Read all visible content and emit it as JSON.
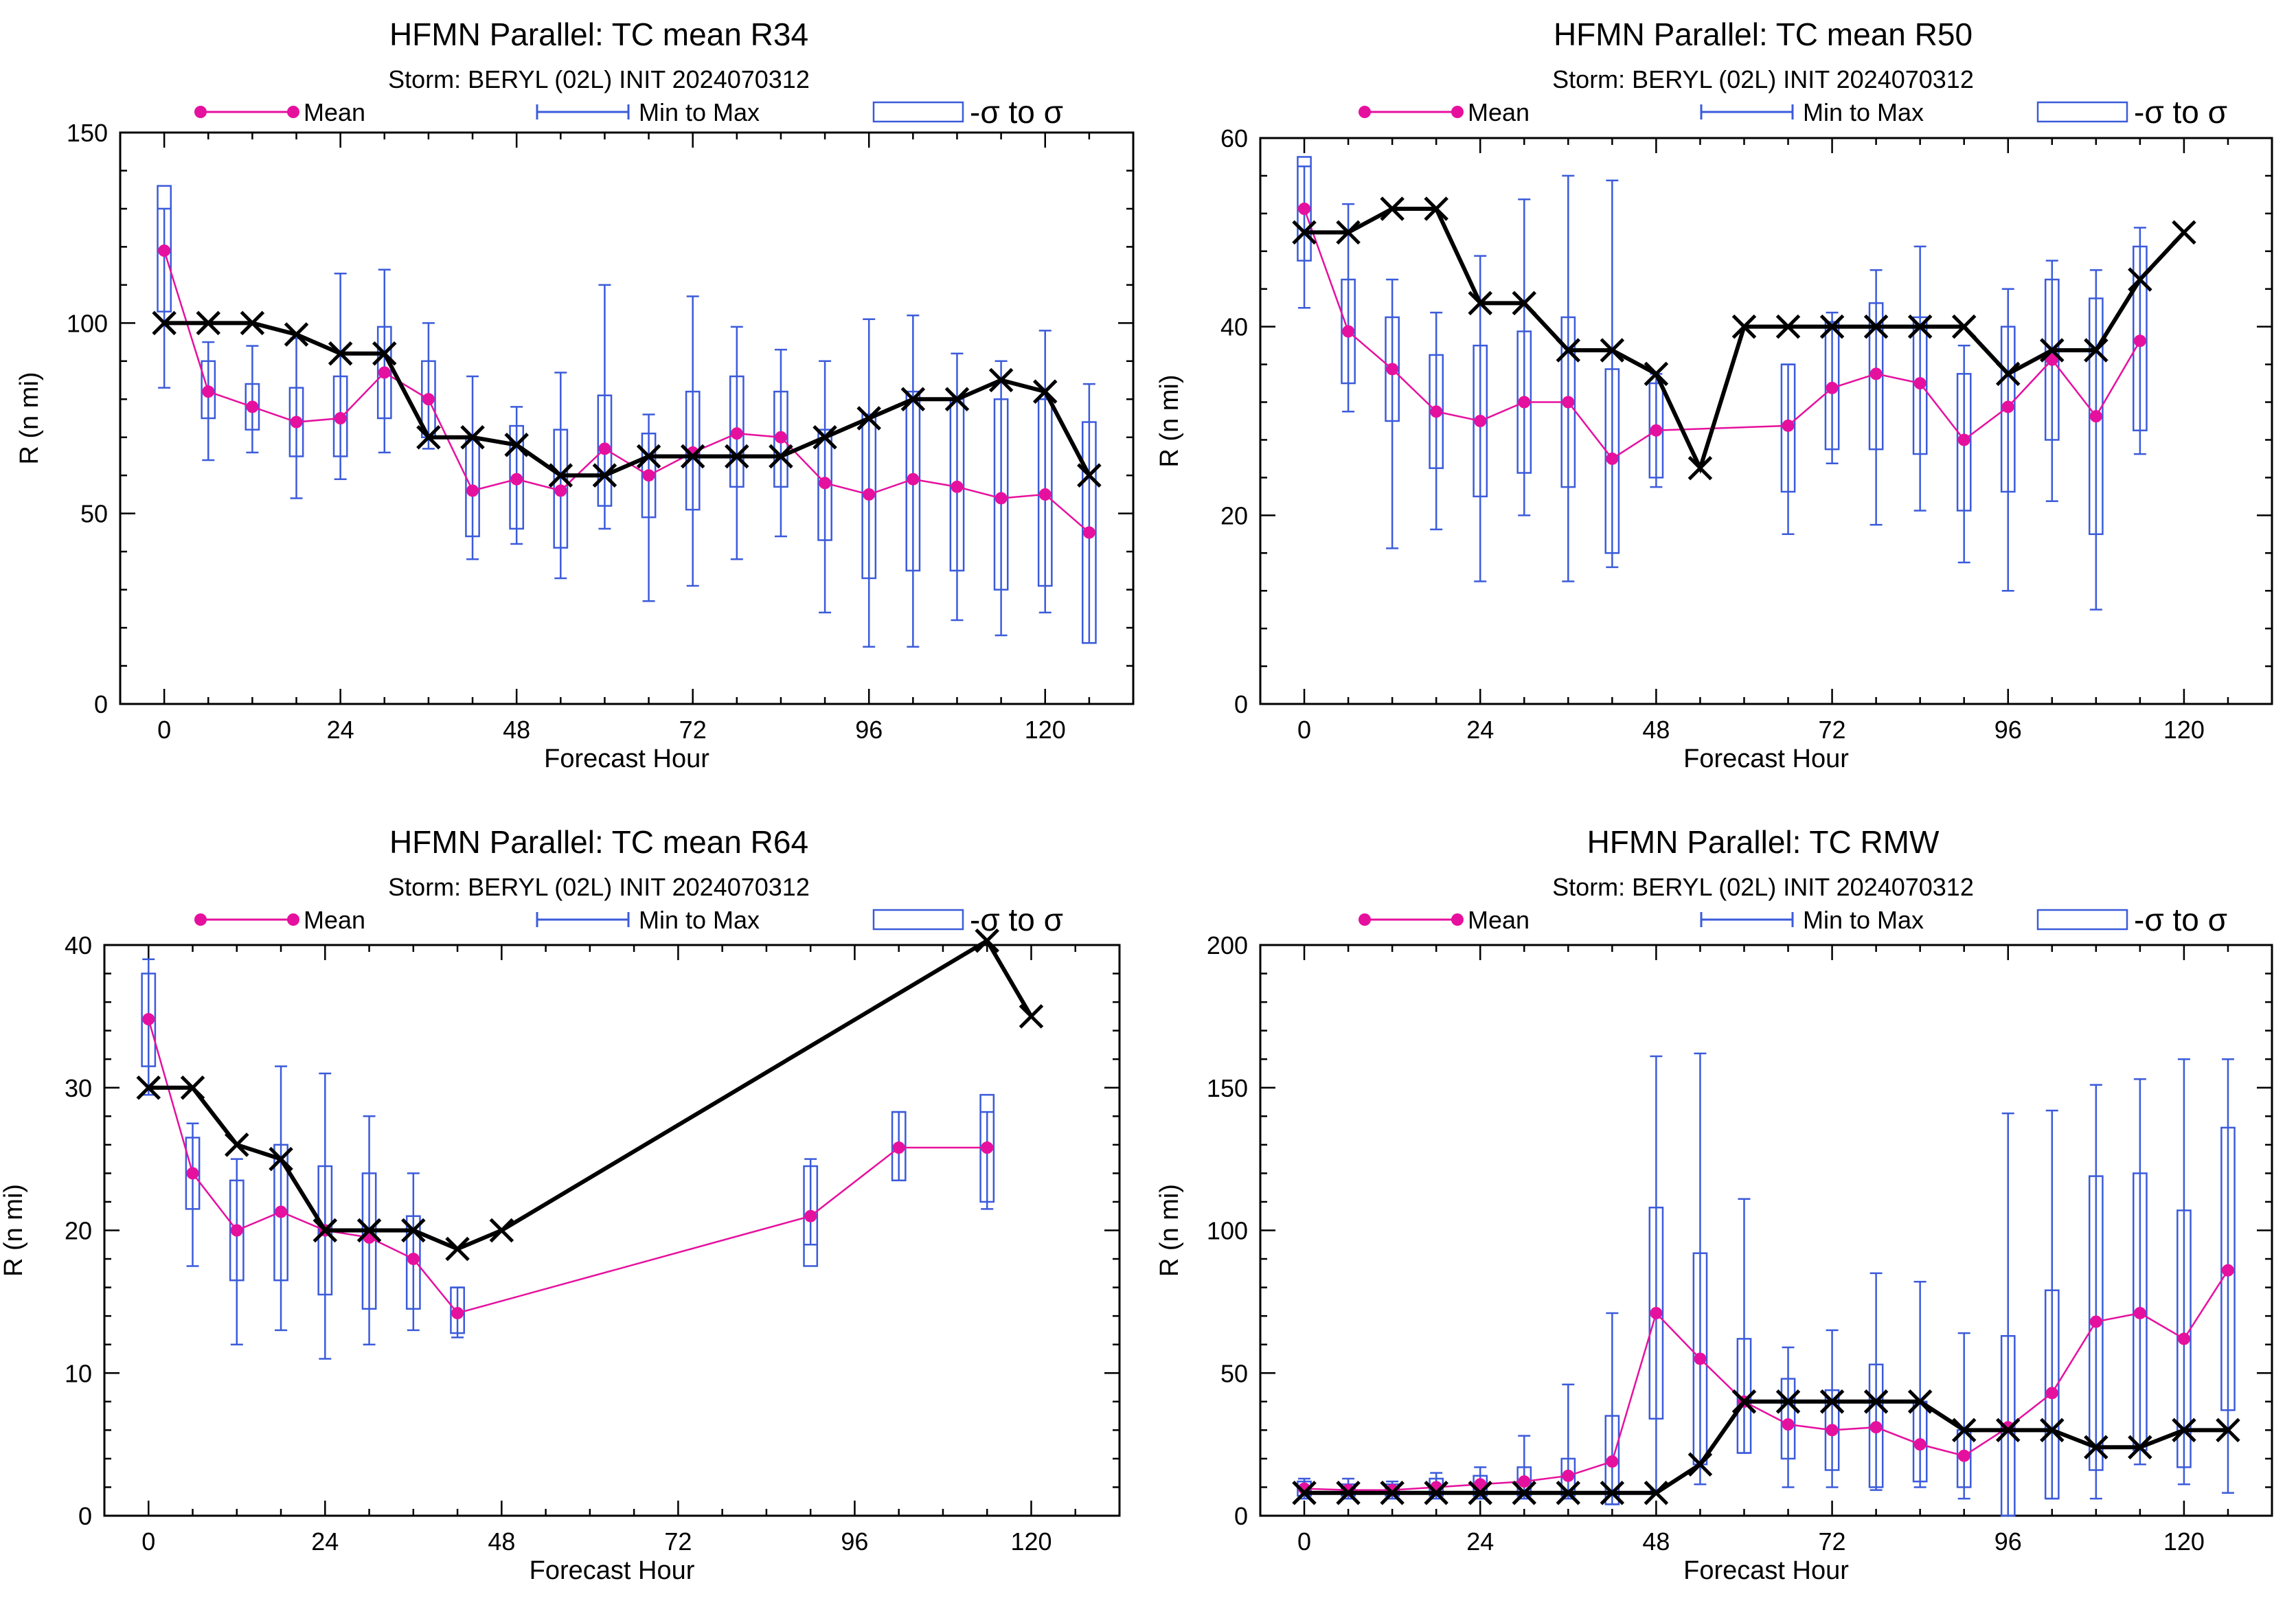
{
  "chart_data": [
    {
      "type": "box-line",
      "title": "HFMN Parallel: TC mean R34",
      "subtitle": "Storm: BERYL (02L) INIT 2024070312",
      "xlabel": "Forecast Hour",
      "ylabel": "R (n mi)",
      "xlim": [
        -6,
        132
      ],
      "ylim": [
        0,
        150
      ],
      "xticks": [
        0,
        24,
        48,
        72,
        96,
        120
      ],
      "yticks": [
        0,
        50,
        100,
        150
      ],
      "legend": {
        "placement": "top",
        "mean": "Mean",
        "range": "Min to Max",
        "sigma": "-σ to σ"
      },
      "colors": {
        "mean": "#e6109e",
        "box": "#3b5bdb",
        "observed": "#000000"
      },
      "boxes": [
        {
          "x": 0,
          "min": 83,
          "max": 130,
          "lo": 103,
          "hi": 136,
          "mean": 119
        },
        {
          "x": 6,
          "min": 64,
          "max": 95,
          "lo": 75,
          "hi": 90,
          "mean": 82
        },
        {
          "x": 12,
          "min": 66,
          "max": 94,
          "lo": 72,
          "hi": 84,
          "mean": 78
        },
        {
          "x": 18,
          "min": 54,
          "max": 96,
          "lo": 65,
          "hi": 83,
          "mean": 74
        },
        {
          "x": 24,
          "min": 59,
          "max": 113,
          "lo": 65,
          "hi": 86,
          "mean": 75
        },
        {
          "x": 30,
          "min": 66,
          "max": 114,
          "lo": 75,
          "hi": 99,
          "mean": 87
        },
        {
          "x": 36,
          "min": 67,
          "max": 100,
          "lo": 70,
          "hi": 90,
          "mean": 80
        },
        {
          "x": 42,
          "min": 38,
          "max": 86,
          "lo": 44,
          "hi": 70,
          "mean": 56
        },
        {
          "x": 48,
          "min": 42,
          "max": 78,
          "lo": 46,
          "hi": 73,
          "mean": 59
        },
        {
          "x": 54,
          "min": 33,
          "max": 87,
          "lo": 41,
          "hi": 72,
          "mean": 56
        },
        {
          "x": 60,
          "min": 46,
          "max": 110,
          "lo": 52,
          "hi": 81,
          "mean": 67
        },
        {
          "x": 66,
          "min": 27,
          "max": 76,
          "lo": 49,
          "hi": 71,
          "mean": 60
        },
        {
          "x": 72,
          "min": 31,
          "max": 107,
          "lo": 51,
          "hi": 82,
          "mean": 66
        },
        {
          "x": 78,
          "min": 38,
          "max": 99,
          "lo": 57,
          "hi": 86,
          "mean": 71
        },
        {
          "x": 84,
          "min": 44,
          "max": 93,
          "lo": 57,
          "hi": 82,
          "mean": 70
        },
        {
          "x": 90,
          "min": 24,
          "max": 90,
          "lo": 43,
          "hi": 72,
          "mean": 58
        },
        {
          "x": 96,
          "min": 15,
          "max": 101,
          "lo": 33,
          "hi": 76,
          "mean": 55
        },
        {
          "x": 102,
          "min": 15,
          "max": 102,
          "lo": 35,
          "hi": 82,
          "mean": 59
        },
        {
          "x": 108,
          "min": 22,
          "max": 92,
          "lo": 35,
          "hi": 80,
          "mean": 57
        },
        {
          "x": 114,
          "min": 18,
          "max": 90,
          "lo": 30,
          "hi": 80,
          "mean": 54
        },
        {
          "x": 120,
          "min": 24,
          "max": 98,
          "lo": 31,
          "hi": 80,
          "mean": 55
        },
        {
          "x": 126,
          "min": 16,
          "max": 84,
          "lo": 16,
          "hi": 74,
          "mean": 45
        }
      ],
      "observed": [
        [
          0,
          100
        ],
        [
          6,
          100
        ],
        [
          12,
          100
        ],
        [
          18,
          97
        ],
        [
          24,
          92
        ],
        [
          30,
          92
        ],
        [
          36,
          70
        ],
        [
          42,
          70
        ],
        [
          48,
          68
        ],
        [
          54,
          60
        ],
        [
          60,
          60
        ],
        [
          66,
          65
        ],
        [
          72,
          65
        ],
        [
          78,
          65
        ],
        [
          84,
          65
        ],
        [
          90,
          70
        ],
        [
          96,
          75
        ],
        [
          102,
          80
        ],
        [
          108,
          80
        ],
        [
          114,
          85
        ],
        [
          120,
          82
        ],
        [
          126,
          60
        ]
      ]
    },
    {
      "type": "box-line",
      "title": "HFMN Parallel: TC mean R50",
      "subtitle": "Storm: BERYL (02L) INIT 2024070312",
      "xlabel": "Forecast Hour",
      "ylabel": "R (n mi)",
      "xlim": [
        -6,
        132
      ],
      "ylim": [
        0,
        60
      ],
      "xticks": [
        0,
        24,
        48,
        72,
        96,
        120
      ],
      "yticks": [
        0,
        20,
        40,
        60
      ],
      "legend": {
        "placement": "top",
        "mean": "Mean",
        "range": "Min to Max",
        "sigma": "-σ to σ"
      },
      "colors": {
        "mean": "#e6109e",
        "box": "#3b5bdb",
        "observed": "#000000"
      },
      "boxes": [
        {
          "x": 0,
          "min": 42,
          "max": 57,
          "lo": 47,
          "hi": 58,
          "mean": 52.5
        },
        {
          "x": 6,
          "min": 31,
          "max": 53,
          "lo": 34,
          "hi": 45,
          "mean": 39.5
        },
        {
          "x": 12,
          "min": 16.5,
          "max": 45,
          "lo": 30,
          "hi": 41,
          "mean": 35.5
        },
        {
          "x": 18,
          "min": 18.5,
          "max": 41.5,
          "lo": 25,
          "hi": 37,
          "mean": 31
        },
        {
          "x": 24,
          "min": 13,
          "max": 47.5,
          "lo": 22,
          "hi": 38,
          "mean": 30
        },
        {
          "x": 30,
          "min": 20,
          "max": 53.5,
          "lo": 24.5,
          "hi": 39.5,
          "mean": 32
        },
        {
          "x": 36,
          "min": 13,
          "max": 56,
          "lo": 23,
          "hi": 41,
          "mean": 32
        },
        {
          "x": 42,
          "min": 14.5,
          "max": 55.5,
          "lo": 16,
          "hi": 35.5,
          "mean": 26
        },
        {
          "x": 48,
          "min": 23,
          "max": 35,
          "lo": 24,
          "hi": 34,
          "mean": 29
        },
        {
          "x": 66,
          "min": 18,
          "max": 36,
          "lo": 22.5,
          "hi": 36,
          "mean": 29.5
        },
        {
          "x": 72,
          "min": 25.5,
          "max": 41.5,
          "lo": 27,
          "hi": 40.5,
          "mean": 33.5
        },
        {
          "x": 78,
          "min": 19,
          "max": 46,
          "lo": 27,
          "hi": 42.5,
          "mean": 35
        },
        {
          "x": 84,
          "min": 20.5,
          "max": 48.5,
          "lo": 26.5,
          "hi": 41,
          "mean": 34
        },
        {
          "x": 90,
          "min": 15,
          "max": 38,
          "lo": 20.5,
          "hi": 35,
          "mean": 28
        },
        {
          "x": 96,
          "min": 12,
          "max": 44,
          "lo": 22.5,
          "hi": 40,
          "mean": 31.5
        },
        {
          "x": 102,
          "min": 21.5,
          "max": 47,
          "lo": 28,
          "hi": 45,
          "mean": 36.5
        },
        {
          "x": 108,
          "min": 10,
          "max": 46,
          "lo": 18,
          "hi": 43,
          "mean": 30.5
        },
        {
          "x": 114,
          "min": 26.5,
          "max": 50.5,
          "lo": 29,
          "hi": 48.5,
          "mean": 38.5
        }
      ],
      "observed": [
        [
          0,
          50
        ],
        [
          6,
          50
        ],
        [
          12,
          52.5
        ],
        [
          18,
          52.5
        ],
        [
          24,
          42.5
        ],
        [
          30,
          42.5
        ],
        [
          36,
          37.5
        ],
        [
          42,
          37.5
        ],
        [
          48,
          35
        ],
        [
          54,
          25
        ],
        [
          60,
          40
        ],
        [
          66,
          40
        ],
        [
          72,
          40
        ],
        [
          78,
          40
        ],
        [
          84,
          40
        ],
        [
          90,
          40
        ],
        [
          96,
          35
        ],
        [
          102,
          37.5
        ],
        [
          108,
          37.5
        ],
        [
          114,
          45
        ],
        [
          120,
          50
        ]
      ]
    },
    {
      "type": "box-line",
      "title": "HFMN Parallel: TC mean R64",
      "subtitle": "Storm: BERYL (02L) INIT 2024070312",
      "xlabel": "Forecast Hour",
      "ylabel": "R (n mi)",
      "xlim": [
        -6,
        132
      ],
      "ylim": [
        0,
        40
      ],
      "xticks": [
        0,
        24,
        48,
        72,
        96,
        120
      ],
      "yticks": [
        0,
        10,
        20,
        30,
        40
      ],
      "legend": {
        "placement": "top",
        "mean": "Mean",
        "range": "Min to Max",
        "sigma": "-σ to σ"
      },
      "colors": {
        "mean": "#e6109e",
        "box": "#3b5bdb",
        "observed": "#000000"
      },
      "boxes": [
        {
          "x": 0,
          "min": 29.5,
          "max": 39,
          "lo": 31.5,
          "hi": 38,
          "mean": 34.8
        },
        {
          "x": 6,
          "min": 17.5,
          "max": 27.5,
          "lo": 21.5,
          "hi": 26.5,
          "mean": 24
        },
        {
          "x": 12,
          "min": 12,
          "max": 25,
          "lo": 16.5,
          "hi": 23.5,
          "mean": 20
        },
        {
          "x": 18,
          "min": 13,
          "max": 31.5,
          "lo": 16.5,
          "hi": 26,
          "mean": 21.3
        },
        {
          "x": 24,
          "min": 11,
          "max": 31,
          "lo": 15.5,
          "hi": 24.5,
          "mean": 20
        },
        {
          "x": 30,
          "min": 12,
          "max": 28,
          "lo": 14.5,
          "hi": 24,
          "mean": 19.5
        },
        {
          "x": 36,
          "min": 13,
          "max": 24,
          "lo": 14.5,
          "hi": 21,
          "mean": 18
        },
        {
          "x": 42,
          "min": 12.5,
          "max": 16,
          "lo": 12.8,
          "hi": 16,
          "mean": 14.2
        },
        {
          "x": 90,
          "min": 19,
          "max": 25,
          "lo": 17.5,
          "hi": 24.5,
          "mean": 21
        },
        {
          "x": 102,
          "min": 23.5,
          "max": 28.3,
          "lo": 23.5,
          "hi": 28.3,
          "mean": 25.8
        },
        {
          "x": 114,
          "min": 21.5,
          "max": 28.3,
          "lo": 22,
          "hi": 29.5,
          "mean": 25.8
        }
      ],
      "observed": [
        [
          0,
          30
        ],
        [
          6,
          30
        ],
        [
          12,
          26
        ],
        [
          18,
          25
        ],
        [
          24,
          20
        ],
        [
          30,
          20
        ],
        [
          36,
          20
        ],
        [
          42,
          18.7
        ],
        [
          48,
          20
        ],
        [
          114,
          40.3
        ],
        [
          120,
          35
        ]
      ]
    },
    {
      "type": "box-line",
      "title": "HFMN Parallel: TC RMW",
      "subtitle": "Storm: BERYL (02L) INIT 2024070312",
      "xlabel": "Forecast Hour",
      "ylabel": "R (n mi)",
      "xlim": [
        -6,
        132
      ],
      "ylim": [
        0,
        200
      ],
      "xticks": [
        0,
        24,
        48,
        72,
        96,
        120
      ],
      "yticks": [
        0,
        50,
        100,
        150,
        200
      ],
      "legend": {
        "placement": "top",
        "mean": "Mean",
        "range": "Min to Max",
        "sigma": "-σ to σ"
      },
      "colors": {
        "mean": "#e6109e",
        "box": "#3b5bdb",
        "observed": "#000000"
      },
      "boxes": [
        {
          "x": 0,
          "min": 6,
          "max": 13,
          "lo": 7,
          "hi": 12,
          "mean": 9.5
        },
        {
          "x": 6,
          "min": 6,
          "max": 13,
          "lo": 7,
          "hi": 11,
          "mean": 9
        },
        {
          "x": 12,
          "min": 6,
          "max": 12,
          "lo": 7,
          "hi": 11,
          "mean": 9
        },
        {
          "x": 18,
          "min": 6,
          "max": 15,
          "lo": 7,
          "hi": 13,
          "mean": 10
        },
        {
          "x": 24,
          "min": 6,
          "max": 17,
          "lo": 7,
          "hi": 14,
          "mean": 11
        },
        {
          "x": 30,
          "min": 6,
          "max": 28,
          "lo": 7,
          "hi": 17,
          "mean": 12
        },
        {
          "x": 36,
          "min": 6,
          "max": 46,
          "lo": 7,
          "hi": 20,
          "mean": 14
        },
        {
          "x": 42,
          "min": 4,
          "max": 71,
          "lo": 4,
          "hi": 35,
          "mean": 19
        },
        {
          "x": 48,
          "min": 9,
          "max": 161,
          "lo": 34,
          "hi": 108,
          "mean": 71
        },
        {
          "x": 54,
          "min": 11,
          "max": 162,
          "lo": 18,
          "hi": 92,
          "mean": 55
        },
        {
          "x": 60,
          "min": 22,
          "max": 111,
          "lo": 22,
          "hi": 62,
          "mean": 40
        },
        {
          "x": 66,
          "min": 10,
          "max": 59,
          "lo": 20,
          "hi": 48,
          "mean": 32
        },
        {
          "x": 72,
          "min": 10,
          "max": 65,
          "lo": 16,
          "hi": 44,
          "mean": 30
        },
        {
          "x": 78,
          "min": 9,
          "max": 85,
          "lo": 10,
          "hi": 53,
          "mean": 31
        },
        {
          "x": 84,
          "min": 10,
          "max": 82,
          "lo": 12,
          "hi": 40,
          "mean": 25
        },
        {
          "x": 90,
          "min": 6,
          "max": 64,
          "lo": 10,
          "hi": 30,
          "mean": 21
        },
        {
          "x": 96,
          "min": 0,
          "max": 141,
          "lo": 0,
          "hi": 63,
          "mean": 31
        },
        {
          "x": 102,
          "min": 6,
          "max": 142,
          "lo": 6,
          "hi": 79,
          "mean": 43
        },
        {
          "x": 108,
          "min": 6,
          "max": 151,
          "lo": 16,
          "hi": 119,
          "mean": 68
        },
        {
          "x": 114,
          "min": 18,
          "max": 153,
          "lo": 23,
          "hi": 120,
          "mean": 71
        },
        {
          "x": 120,
          "min": 11,
          "max": 160,
          "lo": 17,
          "hi": 107,
          "mean": 62
        },
        {
          "x": 126,
          "min": 8,
          "max": 160,
          "lo": 37,
          "hi": 136,
          "mean": 86
        }
      ],
      "observed": [
        [
          0,
          8
        ],
        [
          6,
          8
        ],
        [
          12,
          8
        ],
        [
          18,
          8
        ],
        [
          24,
          8
        ],
        [
          30,
          8
        ],
        [
          36,
          8
        ],
        [
          42,
          8
        ],
        [
          48,
          8
        ],
        [
          54,
          18
        ],
        [
          60,
          40
        ],
        [
          66,
          40
        ],
        [
          72,
          40
        ],
        [
          78,
          40
        ],
        [
          84,
          40
        ],
        [
          90,
          30
        ],
        [
          96,
          30
        ],
        [
          102,
          30
        ],
        [
          108,
          24
        ],
        [
          114,
          24
        ],
        [
          120,
          30
        ],
        [
          126,
          30
        ]
      ]
    }
  ]
}
